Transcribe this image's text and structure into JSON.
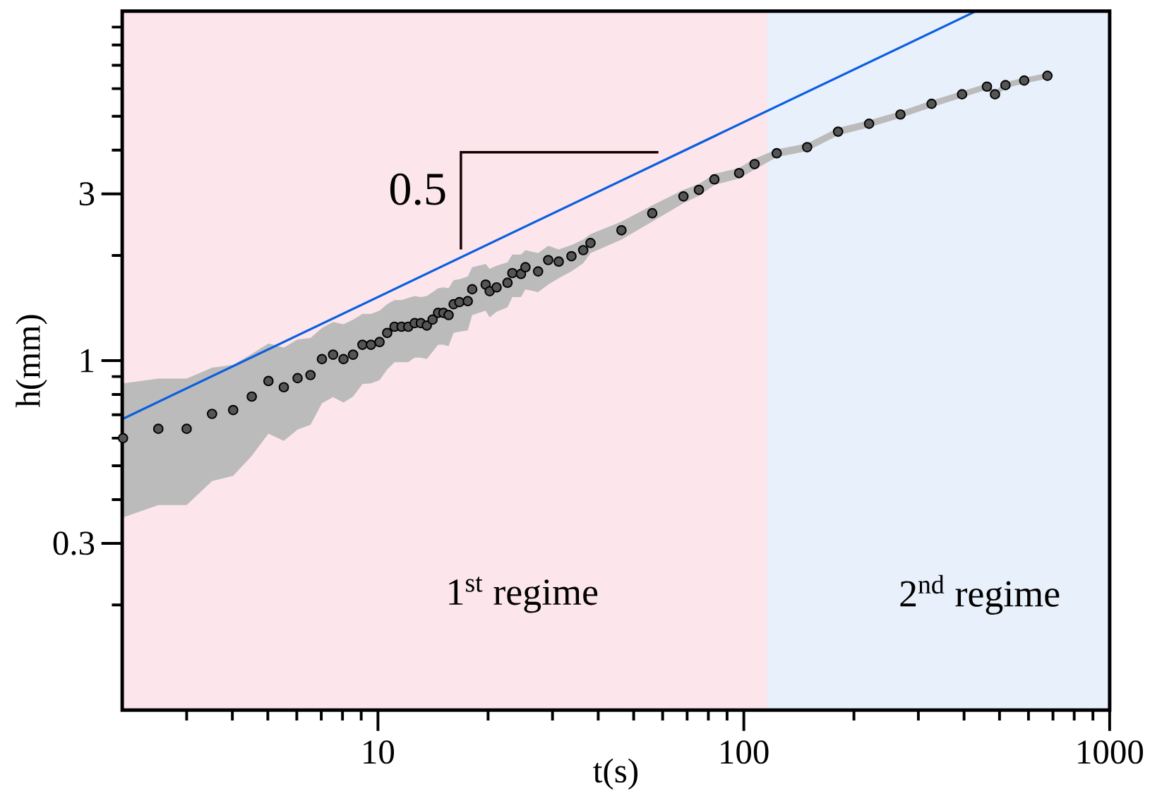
{
  "chart_data": {
    "type": "scatter",
    "xlabel": "t(s)",
    "ylabel": "h(mm)",
    "log": "xy",
    "grid": false,
    "xlim": [
      2,
      1000
    ],
    "ylim": [
      0.1,
      10
    ],
    "xticks": [
      {
        "value": 3,
        "label": null
      },
      {
        "value": 4,
        "label": null
      },
      {
        "value": 5,
        "label": null
      },
      {
        "value": 6,
        "label": null
      },
      {
        "value": 7,
        "label": null
      },
      {
        "value": 8,
        "label": null
      },
      {
        "value": 9,
        "label": null
      },
      10,
      {
        "value": 20,
        "label": null
      },
      {
        "value": 30,
        "label": null
      },
      {
        "value": 40,
        "label": null
      },
      {
        "value": 50,
        "label": null
      },
      {
        "value": 60,
        "label": null
      },
      {
        "value": 70,
        "label": null
      },
      {
        "value": 80,
        "label": null
      },
      {
        "value": 90,
        "label": null
      },
      100,
      {
        "value": 200,
        "label": null
      },
      {
        "value": 300,
        "label": null
      },
      {
        "value": 400,
        "label": null
      },
      {
        "value": 500,
        "label": null
      },
      {
        "value": 600,
        "label": null
      },
      {
        "value": 700,
        "label": null
      },
      {
        "value": 800,
        "label": null
      },
      {
        "value": 900,
        "label": null
      },
      1000
    ],
    "yticks": [
      {
        "value": 0.2,
        "label": null
      },
      0.3,
      {
        "value": 0.4,
        "label": null
      },
      {
        "value": 0.5,
        "label": null
      },
      {
        "value": 0.6,
        "label": null
      },
      {
        "value": 0.7,
        "label": null
      },
      {
        "value": 0.8,
        "label": null
      },
      {
        "value": 0.9,
        "label": null
      },
      1,
      {
        "value": 2,
        "label": null
      },
      3,
      {
        "value": 4,
        "label": null
      },
      {
        "value": 5,
        "label": null
      },
      {
        "value": 6,
        "label": null
      },
      {
        "value": 7,
        "label": null
      },
      {
        "value": 8,
        "label": null
      },
      {
        "value": 9,
        "label": null
      }
    ],
    "bands": [
      {
        "axis": "x",
        "from": 2,
        "to": 116,
        "label": "1$^{st}$ regime",
        "color": "#fce6eb"
      },
      {
        "axis": "x",
        "from": 116,
        "to": 1000,
        "label": "2$^{nd}$ regime",
        "color": "#e8f0fb"
      }
    ],
    "annotations": [
      "0.5"
    ],
    "series": [
      {
        "type": "scatter",
        "marker": "circle",
        "color": "#555555",
        "x": [
          2.01,
          2.51,
          3.0,
          3.52,
          4.02,
          4.52,
          5.02,
          5.53,
          6.03,
          6.54,
          7.03,
          7.54,
          8.05,
          8.55,
          9.07,
          9.57,
          10.1,
          10.6,
          11.1,
          11.6,
          12.1,
          12.6,
          13.1,
          13.6,
          14.1,
          14.6,
          15.1,
          15.6,
          16.1,
          16.7,
          17.6,
          18.1,
          19.7,
          20.2,
          21.1,
          22.6,
          23.3,
          24.6,
          25.3,
          27.4,
          29.2,
          31.2,
          33.8,
          36.4,
          38.1,
          46.3,
          56.2,
          68.4,
          75.4,
          83.1,
          97.1,
          107,
          123,
          149,
          181,
          220,
          268,
          326,
          395,
          462,
          486,
          519,
          584,
          676
        ],
        "values": [
          0.6,
          0.638,
          0.638,
          0.704,
          0.722,
          0.789,
          0.874,
          0.839,
          0.891,
          0.909,
          1.01,
          1.04,
          1.01,
          1.04,
          1.11,
          1.11,
          1.13,
          1.2,
          1.25,
          1.25,
          1.25,
          1.28,
          1.28,
          1.26,
          1.31,
          1.37,
          1.37,
          1.35,
          1.45,
          1.47,
          1.48,
          1.6,
          1.65,
          1.58,
          1.62,
          1.67,
          1.78,
          1.77,
          1.85,
          1.8,
          1.94,
          1.92,
          1.99,
          2.07,
          2.17,
          2.36,
          2.64,
          2.95,
          3.08,
          3.3,
          3.44,
          3.65,
          3.92,
          4.08,
          4.52,
          4.76,
          5.06,
          5.43,
          5.78,
          6.08,
          5.78,
          6.14,
          6.33,
          6.53
        ],
        "upper": [
          0.861,
          0.888,
          0.888,
          0.954,
          0.973,
          1.045,
          1.12,
          1.09,
          1.15,
          1.16,
          1.24,
          1.29,
          1.27,
          1.31,
          1.36,
          1.36,
          1.39,
          1.45,
          1.49,
          1.49,
          1.51,
          1.53,
          1.52,
          1.53,
          1.57,
          1.61,
          1.62,
          1.61,
          1.7,
          1.71,
          1.74,
          1.85,
          1.89,
          1.83,
          1.87,
          1.91,
          2.01,
          2.01,
          2.07,
          2.03,
          2.13,
          2.08,
          2.14,
          2.22,
          2.3,
          2.5,
          2.78,
          3.08,
          3.2,
          3.42,
          3.56,
          3.78,
          4.02,
          4.18,
          4.63,
          4.87,
          5.17,
          5.55,
          5.9,
          6.2,
          5.9,
          6.26,
          6.45,
          6.65
        ],
        "lower": [
          0.356,
          0.386,
          0.386,
          0.452,
          0.468,
          0.534,
          0.618,
          0.589,
          0.635,
          0.655,
          0.755,
          0.786,
          0.758,
          0.789,
          0.857,
          0.861,
          0.879,
          0.944,
          0.99,
          0.99,
          0.99,
          1.02,
          1.02,
          1.01,
          1.06,
          1.11,
          1.11,
          1.1,
          1.2,
          1.21,
          1.22,
          1.35,
          1.39,
          1.33,
          1.38,
          1.42,
          1.52,
          1.52,
          1.6,
          1.57,
          1.65,
          1.72,
          1.8,
          1.9,
          2.03,
          2.22,
          2.5,
          2.82,
          2.96,
          3.18,
          3.32,
          3.52,
          3.82,
          3.98,
          4.41,
          4.65,
          4.95,
          5.31,
          5.66,
          5.96,
          5.66,
          6.02,
          6.21,
          6.41
        ]
      },
      {
        "type": "line",
        "marker": "none",
        "color": "#0a5ee0",
        "x": [
          2,
          430
        ],
        "values": [
          0.68,
          9.98
        ]
      }
    ]
  }
}
